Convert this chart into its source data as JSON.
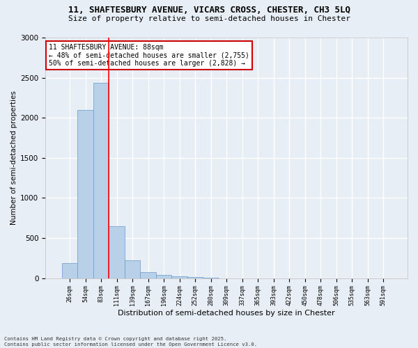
{
  "title_line1": "11, SHAFTESBURY AVENUE, VICARS CROSS, CHESTER, CH3 5LQ",
  "title_line2": "Size of property relative to semi-detached houses in Chester",
  "xlabel": "Distribution of semi-detached houses by size in Chester",
  "ylabel": "Number of semi-detached properties",
  "categories": [
    "26sqm",
    "54sqm",
    "83sqm",
    "111sqm",
    "139sqm",
    "167sqm",
    "196sqm",
    "224sqm",
    "252sqm",
    "280sqm",
    "309sqm",
    "337sqm",
    "365sqm",
    "393sqm",
    "422sqm",
    "450sqm",
    "478sqm",
    "506sqm",
    "535sqm",
    "563sqm",
    "591sqm"
  ],
  "values": [
    190,
    2100,
    2440,
    650,
    220,
    80,
    45,
    25,
    15,
    5,
    0,
    0,
    0,
    0,
    0,
    0,
    0,
    0,
    0,
    0,
    0
  ],
  "bar_color": "#b8d0e8",
  "bar_edge_color": "#6699cc",
  "red_line_x": 2.5,
  "annotation_title": "11 SHAFTESBURY AVENUE: 88sqm",
  "annotation_line1": "← 48% of semi-detached houses are smaller (2,755)",
  "annotation_line2": "50% of semi-detached houses are larger (2,828) →",
  "annotation_box_color": "#ffffff",
  "annotation_box_edge_color": "#cc0000",
  "ylim": [
    0,
    3000
  ],
  "yticks": [
    0,
    500,
    1000,
    1500,
    2000,
    2500,
    3000
  ],
  "background_color": "#e8eef5",
  "grid_color": "#ffffff",
  "footer_line1": "Contains HM Land Registry data © Crown copyright and database right 2025.",
  "footer_line2": "Contains public sector information licensed under the Open Government Licence v3.0."
}
